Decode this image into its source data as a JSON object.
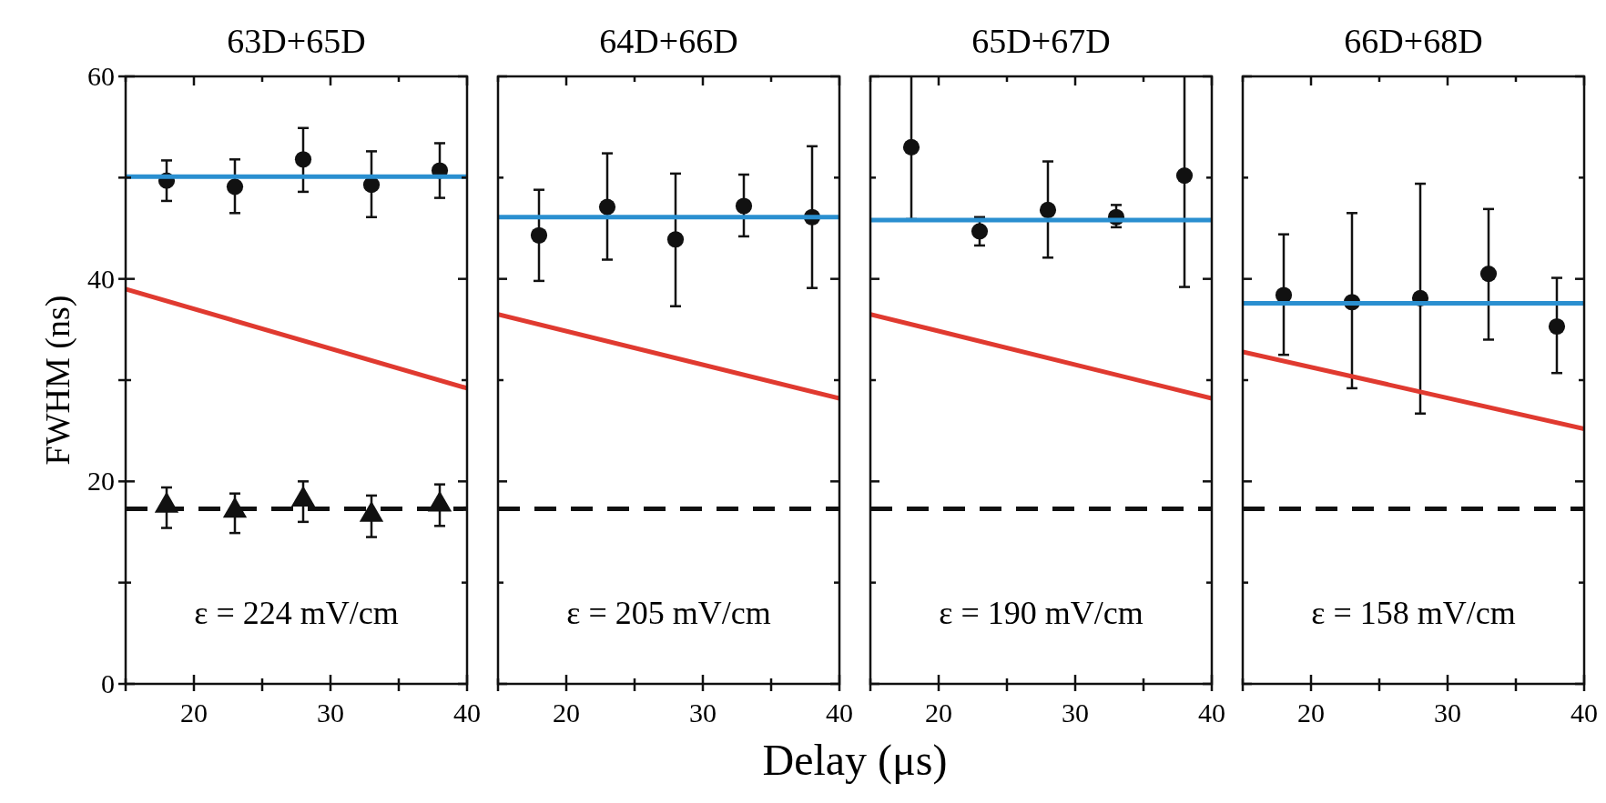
{
  "chart_data": [
    {
      "type": "scatter",
      "title": "63D+65D",
      "ylabel": "FWHM (ns)",
      "annotations": [
        "ε = 224 mV/cm"
      ],
      "xlim": [
        15,
        40
      ],
      "ylim": [
        0,
        60
      ],
      "xticks": [
        {
          "value": 15,
          "label": null
        },
        20,
        {
          "value": 25,
          "label": null
        },
        30,
        {
          "value": 35,
          "label": null
        },
        40
      ],
      "yticks": [
        0,
        {
          "value": 10,
          "label": null
        },
        20,
        {
          "value": 30,
          "label": null
        },
        40,
        {
          "value": 50,
          "label": null
        },
        60
      ],
      "series": [
        {
          "type": "scatter",
          "marker": "circle",
          "color": "#111111",
          "x": [
            18,
            23,
            28,
            33,
            38
          ],
          "values": [
            49.7,
            49.1,
            51.8,
            49.3,
            50.7
          ],
          "errors": [
            [
              47.7,
              51.7
            ],
            [
              46.5,
              51.8
            ],
            [
              48.6,
              54.9
            ],
            [
              46.1,
              52.6
            ],
            [
              48.0,
              53.4
            ]
          ]
        },
        {
          "type": "scatter",
          "marker": "triangle",
          "color": "#111111",
          "x": [
            18,
            23,
            28,
            33,
            38
          ],
          "values": [
            17.6,
            17.1,
            18.2,
            16.7,
            17.7
          ],
          "errors": [
            [
              15.4,
              19.4
            ],
            [
              14.9,
              18.8
            ],
            [
              16.0,
              20.0
            ],
            [
              14.5,
              18.6
            ],
            [
              15.6,
              19.7
            ]
          ]
        },
        {
          "type": "line",
          "color": "#2a8fd0",
          "x": [
            15,
            40
          ],
          "values": [
            50.1,
            50.1
          ]
        },
        {
          "type": "line",
          "color": "#e03a30",
          "x": [
            15,
            40
          ],
          "values": [
            39.0,
            29.2
          ]
        },
        {
          "type": "line",
          "color": "#111111",
          "line_style": "dashed",
          "x": [
            15,
            40
          ],
          "values": [
            17.3,
            17.3
          ]
        }
      ]
    },
    {
      "type": "scatter",
      "title": "64D+66D",
      "xlabel": "Delay (μs)",
      "annotations": [
        "ε = 205 mV/cm"
      ],
      "tick_labels": "x",
      "xlim": [
        15,
        40
      ],
      "ylim": [
        0,
        60
      ],
      "xticks": [
        {
          "value": 15,
          "label": null
        },
        20,
        {
          "value": 25,
          "label": null
        },
        30,
        {
          "value": 35,
          "label": null
        },
        40
      ],
      "yticks": [
        0,
        {
          "value": 10,
          "label": null
        },
        20,
        {
          "value": 30,
          "label": null
        },
        40,
        {
          "value": 50,
          "label": null
        },
        60
      ],
      "series": [
        {
          "type": "scatter",
          "marker": "circle",
          "color": "#111111",
          "x": [
            18,
            23,
            28,
            33,
            38
          ],
          "values": [
            44.3,
            47.1,
            43.9,
            47.2,
            46.1
          ],
          "errors": [
            [
              39.8,
              48.8
            ],
            [
              41.9,
              52.4
            ],
            [
              37.3,
              50.4
            ],
            [
              44.2,
              50.3
            ],
            [
              39.1,
              53.1
            ]
          ]
        },
        {
          "type": "line",
          "color": "#2a8fd0",
          "x": [
            15,
            40
          ],
          "values": [
            46.1,
            46.1
          ]
        },
        {
          "type": "line",
          "color": "#e03a30",
          "x": [
            15,
            40
          ],
          "values": [
            36.5,
            28.2
          ]
        },
        {
          "type": "line",
          "color": "#111111",
          "line_style": "dashed",
          "x": [
            15,
            40
          ],
          "values": [
            17.3,
            17.3
          ]
        }
      ]
    },
    {
      "type": "scatter",
      "title": "65D+67D",
      "annotations": [
        "ε = 190 mV/cm"
      ],
      "tick_labels": "x",
      "xlim": [
        15,
        40
      ],
      "ylim": [
        0,
        60
      ],
      "xticks": [
        {
          "value": 15,
          "label": null
        },
        20,
        {
          "value": 25,
          "label": null
        },
        30,
        {
          "value": 35,
          "label": null
        },
        40
      ],
      "yticks": [
        0,
        {
          "value": 10,
          "label": null
        },
        20,
        {
          "value": 30,
          "label": null
        },
        40,
        {
          "value": 50,
          "label": null
        },
        60
      ],
      "series": [
        {
          "type": "scatter",
          "marker": "circle",
          "color": "#111111",
          "x": [
            18,
            23,
            28,
            33,
            38
          ],
          "values": [
            53.0,
            44.7,
            46.8,
            46.1,
            50.2
          ],
          "errors": [
            [
              45.9,
              60
            ],
            [
              43.3,
              46.1
            ],
            [
              42.1,
              51.6
            ],
            [
              45.1,
              47.3
            ],
            [
              39.2,
              60
            ]
          ]
        },
        {
          "type": "line",
          "color": "#2a8fd0",
          "x": [
            15,
            40
          ],
          "values": [
            45.8,
            45.8
          ]
        },
        {
          "type": "line",
          "color": "#e03a30",
          "x": [
            15,
            40
          ],
          "values": [
            36.5,
            28.2
          ]
        },
        {
          "type": "line",
          "color": "#111111",
          "line_style": "dashed",
          "x": [
            15,
            40
          ],
          "values": [
            17.3,
            17.3
          ]
        }
      ]
    },
    {
      "type": "scatter",
      "title": "66D+68D",
      "annotations": [
        "ε = 158 mV/cm"
      ],
      "tick_labels": "x",
      "xlim": [
        15,
        40
      ],
      "ylim": [
        0,
        60
      ],
      "xticks": [
        {
          "value": 15,
          "label": null
        },
        20,
        {
          "value": 25,
          "label": null
        },
        30,
        {
          "value": 35,
          "label": null
        },
        40
      ],
      "yticks": [
        0,
        {
          "value": 10,
          "label": null
        },
        20,
        {
          "value": 30,
          "label": null
        },
        40,
        {
          "value": 50,
          "label": null
        },
        60
      ],
      "series": [
        {
          "type": "scatter",
          "marker": "circle",
          "color": "#111111",
          "x": [
            18,
            23,
            28,
            33,
            38
          ],
          "values": [
            38.4,
            37.7,
            38.1,
            40.5,
            35.3
          ],
          "errors": [
            [
              32.5,
              44.4
            ],
            [
              29.2,
              46.5
            ],
            [
              26.7,
              49.4
            ],
            [
              34.0,
              46.9
            ],
            [
              30.7,
              40.1
            ]
          ]
        },
        {
          "type": "line",
          "color": "#2a8fd0",
          "x": [
            15,
            40
          ],
          "values": [
            37.6,
            37.6
          ]
        },
        {
          "type": "line",
          "color": "#e03a30",
          "x": [
            15,
            40
          ],
          "values": [
            32.8,
            25.2
          ]
        },
        {
          "type": "line",
          "color": "#111111",
          "line_style": "dashed",
          "x": [
            15,
            40
          ],
          "values": [
            17.3,
            17.3
          ]
        }
      ]
    }
  ]
}
